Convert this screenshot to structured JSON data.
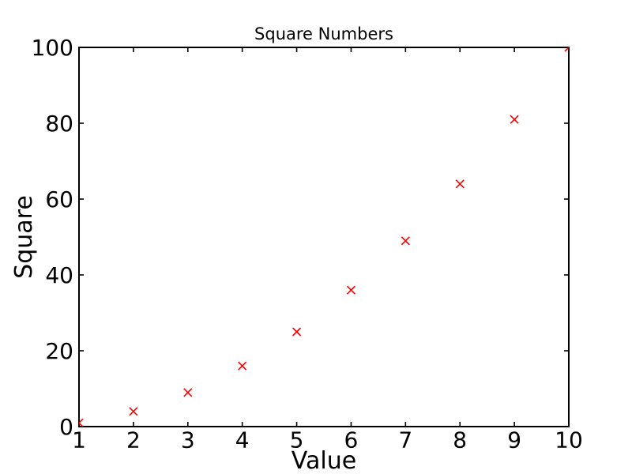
{
  "chart_data": {
    "type": "scatter",
    "title": "Square Numbers",
    "xlabel": "Value",
    "ylabel": "Square",
    "x": [
      1,
      2,
      3,
      4,
      5,
      6,
      7,
      8,
      9,
      10
    ],
    "y": [
      1,
      4,
      9,
      16,
      25,
      36,
      49,
      64,
      81,
      100
    ],
    "marker": "x",
    "marker_color": "#ff0000",
    "marker_size": 10,
    "axis_color": "#000000",
    "background_color": "#ffffff",
    "xlim": [
      1,
      10
    ],
    "ylim": [
      0,
      100
    ],
    "xticks": [
      1,
      2,
      3,
      4,
      5,
      6,
      7,
      8,
      9,
      10
    ],
    "yticks": [
      0,
      20,
      40,
      60,
      80,
      100
    ],
    "grid": false,
    "legend": "none",
    "tick_direction": "in",
    "ticks_all_sides": true
  }
}
